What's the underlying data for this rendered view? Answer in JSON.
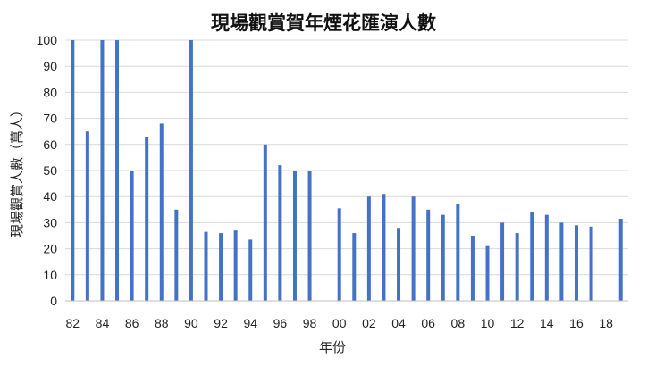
{
  "chart_data": {
    "type": "bar",
    "title": "現場觀賞賀年煙花匯演人數",
    "xlabel": "年份",
    "ylabel": "現場觀賞人數（萬人）",
    "ylim": [
      0,
      100
    ],
    "y_ticks": [
      "0",
      "10",
      "20",
      "30",
      "40",
      "50",
      "60",
      "70",
      "80",
      "90",
      "100"
    ],
    "x_tick_labels": [
      "82",
      "84",
      "86",
      "88",
      "90",
      "92",
      "94",
      "96",
      "98",
      "00",
      "02",
      "04",
      "06",
      "08",
      "10",
      "12",
      "14",
      "16",
      "18"
    ],
    "x": [
      "82",
      "83",
      "84",
      "85",
      "86",
      "87",
      "88",
      "89",
      "90",
      "91",
      "92",
      "93",
      "94",
      "95",
      "96",
      "97",
      "98",
      "99",
      "00",
      "01",
      "02",
      "03",
      "04",
      "05",
      "06",
      "07",
      "08",
      "09",
      "10",
      "11",
      "12",
      "13",
      "14",
      "15",
      "16",
      "17",
      "18",
      "19"
    ],
    "values": [
      100,
      65,
      100,
      100,
      50,
      63,
      68,
      35,
      100,
      26.5,
      26,
      27,
      23.5,
      60,
      52,
      50,
      50,
      null,
      35.5,
      26,
      40,
      41,
      28,
      40,
      35,
      33,
      37,
      25,
      21,
      30,
      26,
      34,
      33,
      30,
      29,
      28.5,
      null,
      31.5
    ],
    "bar_color": "#4472c4",
    "grid": true,
    "legend": "none"
  }
}
